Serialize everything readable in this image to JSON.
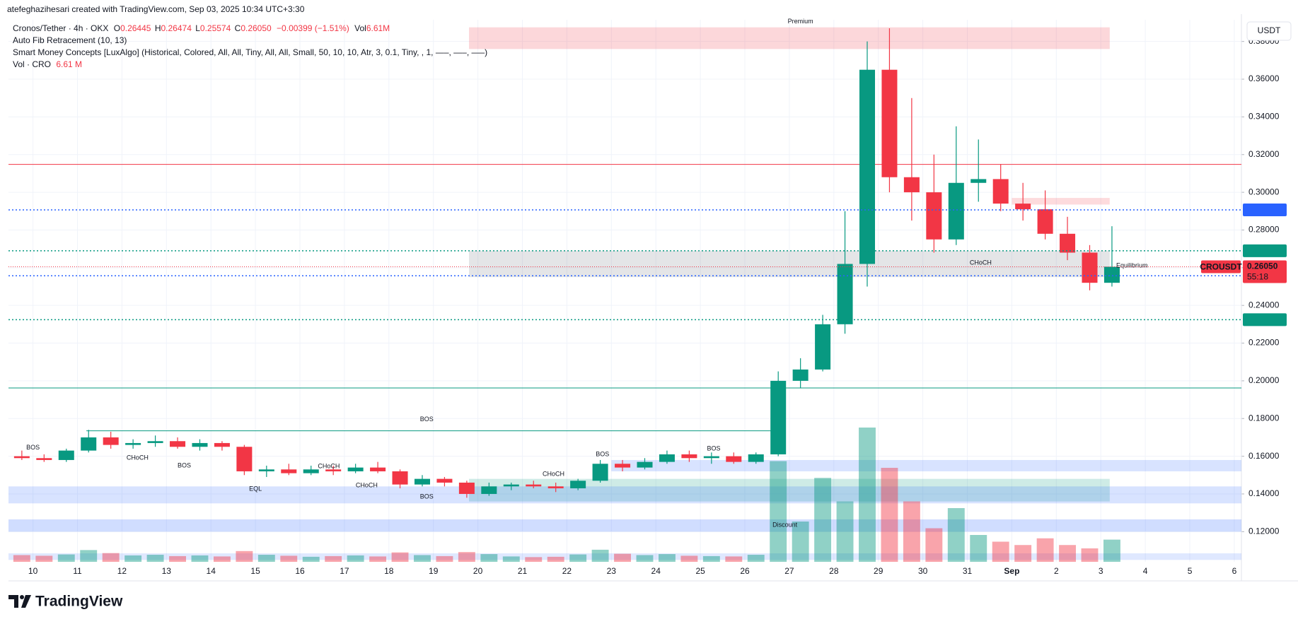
{
  "chart_data": {
    "type": "candlestick",
    "header": "atefeghazihesari created with TradingView.com, Sep 03, 2025 10:34 UTC+3:30",
    "legend": {
      "symbol": "Cronos/Tether · 4h · OKX",
      "fields": [
        {
          "key": "O",
          "value": "0.26445"
        },
        {
          "key": "H",
          "value": "0.26474"
        },
        {
          "key": "L",
          "value": "0.25574"
        },
        {
          "key": "C",
          "value": "0.26050"
        }
      ],
      "change": "−0.00399 (−1.51%)",
      "vol_key": "Vol",
      "vol_value": "6.61M",
      "indicators": [
        "Auto Fib Retracement (10, 13)",
        "Smart Money Concepts [LuxAlgo] (Historical, Colored, All, All, Tiny, All, All, Small, 50, 10, 10, Atr, 3, 0.1, Tiny, , 1, —–, —–, —–)"
      ],
      "volume_name": "Vol · CRO",
      "volume_value": "6.61 M"
    },
    "currency": "USDT",
    "brand": "TradingView",
    "up_color": "#089981",
    "down_color": "#f23645",
    "xlim": [
      -0.55,
      27.16
    ],
    "ylim": [
      0.104,
      0.3915
    ],
    "xticks": [
      {
        "value": 0,
        "label": "10"
      },
      {
        "value": 1,
        "label": "11"
      },
      {
        "value": 2,
        "label": "12"
      },
      {
        "value": 3,
        "label": "13"
      },
      {
        "value": 4,
        "label": "14"
      },
      {
        "value": 5,
        "label": "15"
      },
      {
        "value": 6,
        "label": "16"
      },
      {
        "value": 7,
        "label": "17"
      },
      {
        "value": 8,
        "label": "18"
      },
      {
        "value": 9,
        "label": "19"
      },
      {
        "value": 10,
        "label": "20"
      },
      {
        "value": 11,
        "label": "21"
      },
      {
        "value": 12,
        "label": "22"
      },
      {
        "value": 13,
        "label": "23"
      },
      {
        "value": 14,
        "label": "24"
      },
      {
        "value": 15,
        "label": "25"
      },
      {
        "value": 16,
        "label": "26"
      },
      {
        "value": 17,
        "label": "27"
      },
      {
        "value": 18,
        "label": "28"
      },
      {
        "value": 19,
        "label": "29"
      },
      {
        "value": 20,
        "label": "30"
      },
      {
        "value": 21,
        "label": "31"
      },
      {
        "value": 22,
        "label": "Sep"
      },
      {
        "value": 23,
        "label": "2"
      },
      {
        "value": 24,
        "label": "3"
      },
      {
        "value": 25,
        "label": "4"
      },
      {
        "value": 26,
        "label": "5"
      },
      {
        "value": 27,
        "label": "6"
      }
    ],
    "yticks": [
      {
        "value": 0.12,
        "label": "0.12000"
      },
      {
        "value": 0.14,
        "label": "0.14000"
      },
      {
        "value": 0.16,
        "label": "0.16000"
      },
      {
        "value": 0.18,
        "label": "0.18000"
      },
      {
        "value": 0.2,
        "label": "0.20000"
      },
      {
        "value": 0.22,
        "label": "0.22000"
      },
      {
        "value": 0.24,
        "label": "0.24000"
      },
      {
        "value": 0.26,
        "label": "0.26000"
      },
      {
        "value": 0.28,
        "label": "0.28000"
      },
      {
        "value": 0.3,
        "label": "0.30000"
      },
      {
        "value": 0.32,
        "label": "0.32000"
      },
      {
        "value": 0.34,
        "label": "0.34000"
      },
      {
        "value": 0.36,
        "label": "0.36000"
      },
      {
        "value": 0.38,
        "label": "0.38000"
      }
    ],
    "grid": true,
    "candles": {
      "t": [
        -0.5,
        0,
        0.5,
        1,
        1.5,
        2,
        2.5,
        3,
        3.5,
        4,
        4.5,
        5,
        5.5,
        6,
        6.5,
        7,
        7.5,
        8,
        8.5,
        9,
        9.5,
        10,
        10.5,
        11,
        11.5,
        12,
        12.5,
        13,
        13.5,
        14,
        14.5,
        15,
        15.5,
        16,
        16.5,
        17,
        17.5,
        18,
        18.5,
        19,
        19.5,
        20,
        20.5,
        21,
        21.5,
        22,
        22.5,
        23,
        23.5,
        24
      ],
      "open": [
        0.16,
        0.159,
        0.158,
        0.163,
        0.17,
        0.166,
        0.167,
        0.168,
        0.165,
        0.167,
        0.165,
        0.152,
        0.153,
        0.151,
        0.153,
        0.152,
        0.154,
        0.152,
        0.145,
        0.148,
        0.146,
        0.14,
        0.144,
        0.145,
        0.144,
        0.143,
        0.147,
        0.156,
        0.154,
        0.157,
        0.161,
        0.159,
        0.16,
        0.157,
        0.161,
        0.2,
        0.206,
        0.23,
        0.262,
        0.365,
        0.308,
        0.3,
        0.275,
        0.305,
        0.307,
        0.294,
        0.291,
        0.278,
        0.268,
        0.252
      ],
      "high": [
        0.163,
        0.161,
        0.164,
        0.174,
        0.173,
        0.169,
        0.171,
        0.17,
        0.169,
        0.168,
        0.166,
        0.155,
        0.156,
        0.155,
        0.155,
        0.156,
        0.157,
        0.153,
        0.15,
        0.149,
        0.147,
        0.146,
        0.146,
        0.147,
        0.146,
        0.148,
        0.158,
        0.158,
        0.159,
        0.163,
        0.163,
        0.162,
        0.162,
        0.162,
        0.205,
        0.212,
        0.235,
        0.29,
        0.38,
        0.387,
        0.35,
        0.32,
        0.335,
        0.328,
        0.315,
        0.305,
        0.301,
        0.287,
        0.272,
        0.282
      ],
      "low": [
        0.158,
        0.157,
        0.157,
        0.162,
        0.164,
        0.164,
        0.165,
        0.164,
        0.163,
        0.163,
        0.15,
        0.149,
        0.15,
        0.15,
        0.15,
        0.151,
        0.151,
        0.143,
        0.144,
        0.144,
        0.138,
        0.139,
        0.142,
        0.143,
        0.141,
        0.142,
        0.146,
        0.152,
        0.153,
        0.156,
        0.157,
        0.156,
        0.156,
        0.156,
        0.16,
        0.196,
        0.205,
        0.225,
        0.25,
        0.3,
        0.285,
        0.268,
        0.272,
        0.295,
        0.29,
        0.285,
        0.275,
        0.264,
        0.248,
        0.25
      ],
      "close": [
        0.159,
        0.158,
        0.163,
        0.17,
        0.166,
        0.167,
        0.168,
        0.165,
        0.167,
        0.165,
        0.152,
        0.153,
        0.151,
        0.153,
        0.152,
        0.154,
        0.152,
        0.145,
        0.148,
        0.146,
        0.14,
        0.144,
        0.145,
        0.144,
        0.143,
        0.147,
        0.156,
        0.154,
        0.157,
        0.161,
        0.159,
        0.16,
        0.157,
        0.161,
        0.2,
        0.206,
        0.23,
        0.262,
        0.365,
        0.308,
        0.3,
        0.275,
        0.305,
        0.307,
        0.294,
        0.291,
        0.278,
        0.268,
        0.252,
        0.2605
      ],
      "volume": [
        2.0,
        1.8,
        2.2,
        3.5,
        2.6,
        1.9,
        2.1,
        1.7,
        1.9,
        1.6,
        3.2,
        2.1,
        1.8,
        1.5,
        1.7,
        1.9,
        1.6,
        2.8,
        2.0,
        1.7,
        2.9,
        2.3,
        1.6,
        1.4,
        1.5,
        2.2,
        3.6,
        2.4,
        2.0,
        2.3,
        1.8,
        1.7,
        1.6,
        2.1,
        30,
        12,
        25,
        18,
        40,
        28,
        18,
        10,
        16,
        8,
        6,
        5,
        7,
        5,
        4,
        6.61
      ]
    },
    "zones": [
      {
        "t": [
          9.8,
          24.2
        ],
        "price": [
          0.376,
          0.3875
        ],
        "color": "rgba(242,54,69,0.2)"
      },
      {
        "t": [
          9.8,
          24.2
        ],
        "price": [
          0.255,
          0.269
        ],
        "color": "rgba(120,123,134,0.2)"
      },
      {
        "t": [
          9.8,
          24.2
        ],
        "price": [
          0.136,
          0.148
        ],
        "color": "rgba(8,153,129,0.2)"
      },
      {
        "t": [
          22.0,
          24.2
        ],
        "price": [
          0.2935,
          0.297
        ],
        "color": "rgba(242,54,69,0.18)"
      },
      {
        "t": [
          -0.55,
          27.16
        ],
        "price": [
          0.135,
          0.144
        ],
        "color": "rgba(41,98,255,0.18)"
      },
      {
        "t": [
          13.0,
          27.16
        ],
        "price": [
          0.152,
          0.158
        ],
        "color": "rgba(41,98,255,0.18)"
      },
      {
        "t": [
          -0.55,
          27.16
        ],
        "price": [
          0.12,
          0.1265
        ],
        "color": "rgba(41,98,255,0.22)"
      },
      {
        "t": [
          -0.55,
          27.16
        ],
        "price": [
          0.105,
          0.1085
        ],
        "color": "rgba(41,98,255,0.15)"
      }
    ],
    "lines": [
      {
        "value": 0.3148,
        "color": "#f23645"
      },
      {
        "value": 0.1962,
        "color": "#089981"
      }
    ],
    "segments": [
      {
        "value": 0.1735,
        "t": [
          1.2,
          16.6
        ],
        "color": "#089981"
      }
    ],
    "levels": [
      {
        "value": 0.29065,
        "color": "#2962ff"
      },
      {
        "value": 0.26897,
        "color": "#089981"
      },
      {
        "value": 0.25573,
        "color": "#2962ff"
      },
      {
        "value": 0.23245,
        "color": "#089981"
      }
    ],
    "last": {
      "name": "CROUSDT",
      "value": 0.2605,
      "label": "0.26050",
      "countdown": "55:18",
      "color": "#f23645"
    },
    "smc_labels": [
      {
        "text": "BOS",
        "t": 0.0,
        "price": 0.1645,
        "color": "#089981"
      },
      {
        "text": "CHoCH",
        "t": 2.35,
        "price": 0.159,
        "color": "#f23645"
      },
      {
        "text": "BOS",
        "t": 3.4,
        "price": 0.155,
        "color": "#f23645"
      },
      {
        "text": "EQL",
        "t": 5.0,
        "price": 0.1425,
        "color": "#089981"
      },
      {
        "text": "CHoCH",
        "t": 6.65,
        "price": 0.1545,
        "color": "#089981"
      },
      {
        "text": "CHoCH",
        "t": 7.5,
        "price": 0.1445,
        "color": "#f23645"
      },
      {
        "text": "BOS",
        "t": 8.85,
        "price": 0.1385,
        "color": "#f23645"
      },
      {
        "text": "BOS",
        "t": 8.85,
        "price": 0.1795,
        "color": "#089981"
      },
      {
        "text": "CHoCH",
        "t": 11.7,
        "price": 0.1505,
        "color": "#089981"
      },
      {
        "text": "BOS",
        "t": 12.8,
        "price": 0.161,
        "color": "#089981"
      },
      {
        "text": "BOS",
        "t": 15.3,
        "price": 0.164,
        "color": "#089981"
      },
      {
        "text": "Premium",
        "t": 17.25,
        "price": 0.3905,
        "color": "#f23645"
      },
      {
        "text": "Discount",
        "t": 16.9,
        "price": 0.1235,
        "color": "#089981"
      },
      {
        "text": "CHoCH",
        "t": 21.3,
        "price": 0.2625,
        "color": "#f23645"
      },
      {
        "text": "Equilibrium",
        "t": 24.7,
        "price": 0.261,
        "color": "#9598a1"
      }
    ]
  }
}
